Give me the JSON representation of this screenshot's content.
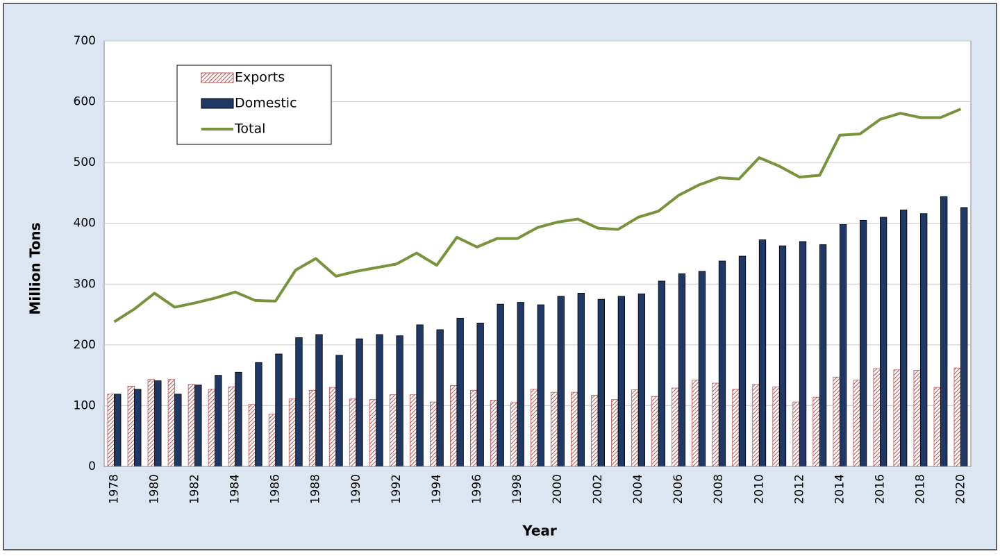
{
  "chart_data": {
    "type": "bar",
    "x_label": "Year",
    "y_label": "Million Tons",
    "categories": [
      "1978",
      null,
      "1980",
      null,
      "1982",
      null,
      "1984",
      null,
      "1986",
      null,
      "1988",
      null,
      "1990",
      null,
      "1992",
      null,
      "1994",
      null,
      "1996",
      null,
      "1998",
      null,
      "2000",
      null,
      "2002",
      null,
      "2004",
      null,
      "2006",
      null,
      "2008",
      null,
      "2010",
      null,
      "2012",
      null,
      "2014",
      null,
      "2016",
      null,
      "2018",
      null,
      "2020"
    ],
    "series": [
      {
        "name": "Exports",
        "type": "bar",
        "color": "#c0504d",
        "values": [
          119,
          132,
          143,
          143,
          135,
          127,
          131,
          102,
          86,
          111,
          125,
          130,
          111,
          110,
          118,
          118,
          106,
          133,
          125,
          109,
          105,
          127,
          122,
          122,
          117,
          110,
          126,
          115,
          129,
          142,
          137,
          127,
          135,
          131,
          106,
          114,
          147,
          142,
          161,
          159,
          158,
          130,
          162
        ]
      },
      {
        "name": "Domestic",
        "type": "bar",
        "color": "#1f3864",
        "values": [
          119,
          127,
          141,
          119,
          134,
          150,
          155,
          171,
          185,
          212,
          217,
          183,
          210,
          217,
          215,
          233,
          225,
          244,
          236,
          267,
          270,
          266,
          280,
          285,
          275,
          280,
          284,
          305,
          317,
          321,
          338,
          346,
          373,
          363,
          370,
          365,
          398,
          405,
          410,
          422,
          416,
          444,
          426
        ]
      },
      {
        "name": "Total",
        "type": "line",
        "color": "#77933c",
        "values": [
          238,
          259,
          285,
          262,
          269,
          277,
          287,
          273,
          272,
          323,
          342,
          313,
          321,
          327,
          333,
          351,
          331,
          377,
          361,
          375,
          375,
          393,
          402,
          407,
          392,
          390,
          410,
          420,
          446,
          463,
          475,
          473,
          508,
          494,
          476,
          479,
          545,
          547,
          571,
          581,
          574,
          574,
          588
        ]
      }
    ],
    "ylim": [
      0,
      700
    ],
    "yticks": [
      0,
      100,
      200,
      300,
      400,
      500,
      600,
      700
    ],
    "grid": true,
    "legend": "top-left"
  }
}
